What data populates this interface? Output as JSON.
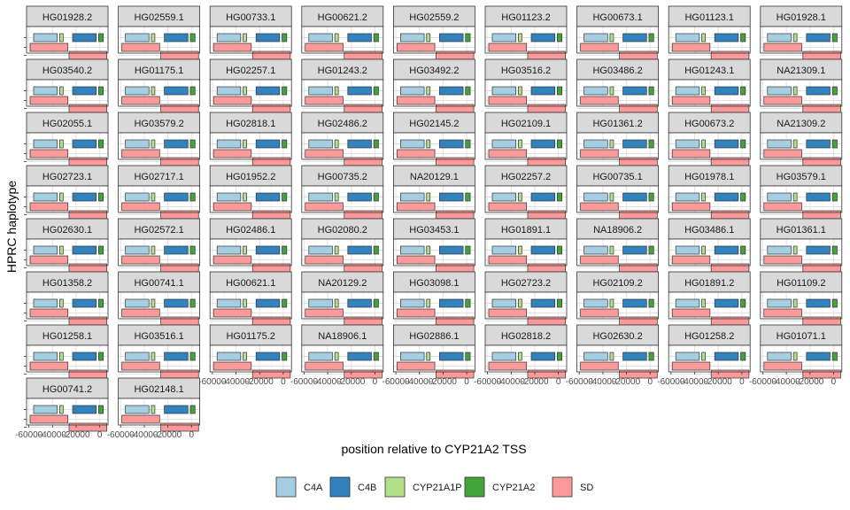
{
  "chart_data": {
    "type": "bar",
    "layout": "faceted small multiples, 9 columns",
    "xlabel": "position relative to CYP21A2 TSS",
    "ylabel": "HPRC haplotype",
    "xlim": [
      -62000,
      7000
    ],
    "x_ticks": [
      -60000,
      -40000,
      -20000,
      0
    ],
    "x_tick_labels": [
      "-60000",
      "-40000",
      "-20000",
      "0"
    ],
    "grid": true,
    "legend_position": "bottom",
    "colors": {
      "C4A": "#a6cee3",
      "C4B": "#3182bd",
      "CYP21A1P": "#b2df8a",
      "CYP21A2": "#41a33a",
      "SD": "#fb9a99"
    },
    "legend": [
      {
        "name": "C4A",
        "color": "#a6cee3"
      },
      {
        "name": "C4B",
        "color": "#3182bd"
      },
      {
        "name": "CYP21A1P",
        "color": "#b2df8a"
      },
      {
        "name": "CYP21A2",
        "color": "#41a33a"
      },
      {
        "name": "SD",
        "color": "#fb9a99"
      }
    ],
    "features": [
      {
        "name": "C4A",
        "start": -56000,
        "end": -36000,
        "row": 1
      },
      {
        "name": "CYP21A1P",
        "start": -34000,
        "end": -31000,
        "row": 1
      },
      {
        "name": "C4B",
        "start": -23000,
        "end": -3000,
        "row": 1
      },
      {
        "name": "CYP21A2",
        "start": -1000,
        "end": 3000,
        "row": 1
      },
      {
        "name": "SD",
        "start": -59000,
        "end": -27000,
        "row": 2
      },
      {
        "name": "SD",
        "start": -26000,
        "end": 6000,
        "row": 3
      }
    ],
    "panels": [
      "HG01928.2",
      "HG02559.1",
      "HG00733.1",
      "HG00621.2",
      "HG02559.2",
      "HG01123.2",
      "HG00673.1",
      "HG01123.1",
      "HG01928.1",
      "HG03540.2",
      "HG01175.1",
      "HG02257.1",
      "HG01243.2",
      "HG03492.2",
      "HG03516.2",
      "HG03486.2",
      "HG01243.1",
      "NA21309.1",
      "HG02055.1",
      "HG03579.2",
      "HG02818.1",
      "HG02486.2",
      "HG02145.2",
      "HG02109.1",
      "HG01361.2",
      "HG00673.2",
      "NA21309.2",
      "HG02723.1",
      "HG02717.1",
      "HG01952.2",
      "HG00735.2",
      "NA20129.1",
      "HG02257.2",
      "HG00735.1",
      "HG01978.1",
      "HG03579.1",
      "HG02630.1",
      "HG02572.1",
      "HG02486.1",
      "HG02080.2",
      "HG03453.1",
      "HG01891.1",
      "NA18906.2",
      "HG03486.1",
      "HG01361.1",
      "HG01358.2",
      "HG00741.1",
      "HG00621.1",
      "NA20129.2",
      "HG03098.1",
      "HG02723.2",
      "HG02109.2",
      "HG01891.2",
      "HG01109.2",
      "HG01258.1",
      "HG03516.1",
      "HG01175.2",
      "NA18906.1",
      "HG02886.1",
      "HG02818.2",
      "HG02630.2",
      "HG01258.2",
      "HG01071.1",
      "HG00741.2",
      "HG02148.1"
    ]
  }
}
